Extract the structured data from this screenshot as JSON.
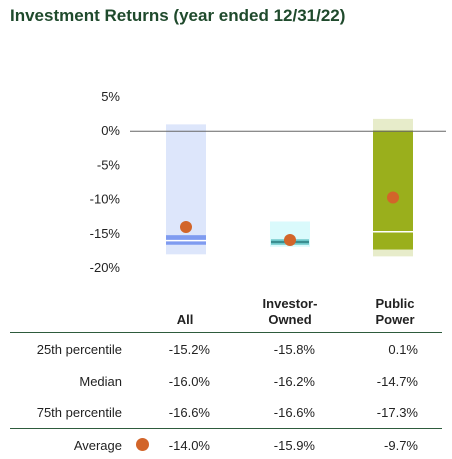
{
  "title": "Investment Returns (year ended 12/31/22)",
  "chart_data": {
    "type": "box",
    "ylim": [
      -20,
      5
    ],
    "y_ticks": [
      "5%",
      "0%",
      "-5%",
      "-10%",
      "-15%",
      "-20%"
    ],
    "y_tick_values": [
      5,
      0,
      -5,
      -10,
      -15,
      -20
    ],
    "categories": [
      "All",
      "Investor-Owned",
      "Public Power"
    ],
    "category_header_lines": [
      [
        "All"
      ],
      [
        "Investor-",
        "Owned"
      ],
      [
        "Public",
        "Power"
      ]
    ],
    "series": [
      {
        "name": "25th percentile",
        "values": [
          -15.2,
          -15.8,
          0.1
        ]
      },
      {
        "name": "Median",
        "values": [
          -16.0,
          -16.2,
          -14.7
        ]
      },
      {
        "name": "75th percentile",
        "values": [
          -16.6,
          -16.6,
          -17.3
        ]
      },
      {
        "name": "Average",
        "values": [
          -14.0,
          -15.9,
          -9.7
        ]
      }
    ],
    "range_bands": [
      {
        "top": 1.0,
        "bottom": -18.0
      },
      {
        "top": -13.2,
        "bottom": -16.9
      },
      {
        "top": 1.8,
        "bottom": -18.3
      }
    ],
    "colors": {
      "band_fill": [
        "#dde6fb",
        "#dafafc",
        "#e7ecca"
      ],
      "iqr_fill": [
        "#7f9bf0",
        "#6cc7c8",
        "#9aaf1c"
      ],
      "median_line": [
        "#ffffff",
        "#2a7c7e",
        "#ffffff"
      ],
      "average_marker": "#d2652a",
      "zero_line": "#666666",
      "rule": "#2e5b3d",
      "title": "#1f4a2c"
    }
  },
  "table": {
    "rows": [
      {
        "label": "25th percentile",
        "values": [
          "-15.2%",
          "-15.8%",
          "0.1%"
        ]
      },
      {
        "label": "Median",
        "values": [
          "-16.0%",
          "-16.2%",
          "-14.7%"
        ]
      },
      {
        "label": "75th percentile",
        "values": [
          "-16.6%",
          "-16.6%",
          "-17.3%"
        ]
      },
      {
        "label": "Average",
        "values": [
          "-14.0%",
          "-15.9%",
          "-9.7%"
        ]
      }
    ]
  }
}
